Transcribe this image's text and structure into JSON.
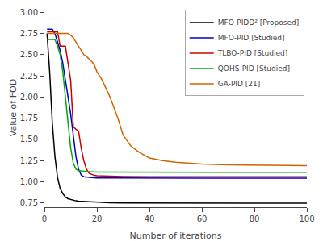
{
  "chart_data": {
    "type": "line",
    "title": "",
    "xlabel": "Number of iterations",
    "ylabel": "Value of FOD",
    "xlim": [
      0,
      100
    ],
    "ylim": [
      0.7,
      3.05
    ],
    "xticks": [
      0,
      20,
      40,
      60,
      80,
      100
    ],
    "yticks": [
      0.75,
      {
        "value": 1.0,
        "label": "1.00"
      },
      1.25,
      {
        "value": 1.5,
        "label": "1.50"
      },
      1.75,
      {
        "value": 2.0,
        "label": "2.00"
      },
      2.25,
      {
        "value": 2.5,
        "label": "2.50"
      },
      2.75,
      {
        "value": 3.0,
        "label": "3.00"
      }
    ],
    "grid": false,
    "legend": "upper right",
    "series": [
      {
        "name": "MFO-PIDD² [Proposed]",
        "color": "#000000",
        "x": [
          1,
          2,
          3,
          4,
          5,
          6,
          7,
          8,
          9,
          10,
          11,
          12,
          13,
          14,
          15,
          16,
          17,
          18,
          19,
          20,
          25,
          30,
          40,
          50,
          60,
          70,
          80,
          90,
          100
        ],
        "values": [
          2.75,
          2.3,
          1.7,
          1.3,
          1.05,
          0.92,
          0.86,
          0.82,
          0.8,
          0.79,
          0.78,
          0.775,
          0.772,
          0.77,
          0.768,
          0.766,
          0.764,
          0.762,
          0.76,
          0.758,
          0.752,
          0.75,
          0.748,
          0.747,
          0.747,
          0.747,
          0.747,
          0.747,
          0.747
        ]
      },
      {
        "name": "MFO-PID [Studied]",
        "color": "#0000cc",
        "x": [
          1,
          2,
          3,
          4,
          5,
          6,
          7,
          8,
          9,
          10,
          11,
          12,
          13,
          14,
          15,
          16,
          17,
          18,
          19,
          20,
          25,
          30,
          40,
          50,
          60,
          70,
          80,
          90,
          100
        ],
        "values": [
          2.8,
          2.8,
          2.8,
          2.75,
          2.65,
          2.55,
          2.4,
          2.2,
          2.0,
          1.8,
          1.55,
          1.3,
          1.15,
          1.08,
          1.06,
          1.055,
          1.052,
          1.05,
          1.048,
          1.046,
          1.044,
          1.043,
          1.042,
          1.042,
          1.042,
          1.042,
          1.042,
          1.042,
          1.042
        ]
      },
      {
        "name": "TLBO-PID [Studied]",
        "color": "#cc0000",
        "x": [
          1,
          2,
          3,
          4,
          5,
          6,
          7,
          8,
          9,
          10,
          11,
          12,
          13,
          14,
          15,
          16,
          17,
          18,
          19,
          20,
          25,
          30,
          40,
          50,
          60,
          70,
          80,
          90,
          100
        ],
        "values": [
          2.77,
          2.77,
          2.77,
          2.77,
          2.77,
          2.6,
          2.6,
          2.6,
          2.4,
          2.2,
          1.65,
          1.62,
          1.6,
          1.4,
          1.25,
          1.15,
          1.1,
          1.085,
          1.075,
          1.07,
          1.065,
          1.062,
          1.06,
          1.058,
          1.058,
          1.058,
          1.058,
          1.058,
          1.058
        ]
      },
      {
        "name": "QOHS-PID [Studied]",
        "color": "#00aa00",
        "x": [
          1,
          2,
          3,
          4,
          5,
          6,
          7,
          8,
          9,
          10,
          11,
          12,
          13,
          14,
          15,
          16,
          17,
          18,
          19,
          20,
          25,
          30,
          40,
          50,
          60,
          70,
          80,
          90,
          100
        ],
        "values": [
          2.68,
          2.68,
          2.68,
          2.68,
          2.6,
          2.5,
          2.3,
          2.0,
          1.7,
          1.4,
          1.22,
          1.15,
          1.13,
          1.125,
          1.122,
          1.12,
          1.118,
          1.116,
          1.115,
          1.114,
          1.113,
          1.112,
          1.112,
          1.112,
          1.112,
          1.112,
          1.112,
          1.112,
          1.112
        ]
      },
      {
        "name": "GA-PID [21]",
        "color": "#cc6600",
        "x": [
          1,
          2,
          3,
          4,
          5,
          6,
          7,
          8,
          9,
          10,
          11,
          12,
          13,
          14,
          15,
          16,
          17,
          18,
          19,
          20,
          22,
          25,
          28,
          30,
          33,
          36,
          40,
          45,
          50,
          55,
          60,
          70,
          80,
          90,
          100
        ],
        "values": [
          2.75,
          2.75,
          2.75,
          2.75,
          2.75,
          2.75,
          2.75,
          2.75,
          2.75,
          2.73,
          2.7,
          2.65,
          2.6,
          2.55,
          2.5,
          2.48,
          2.45,
          2.42,
          2.38,
          2.3,
          2.2,
          2.0,
          1.75,
          1.55,
          1.42,
          1.35,
          1.28,
          1.25,
          1.23,
          1.22,
          1.21,
          1.2,
          1.195,
          1.192,
          1.19
        ]
      }
    ]
  }
}
